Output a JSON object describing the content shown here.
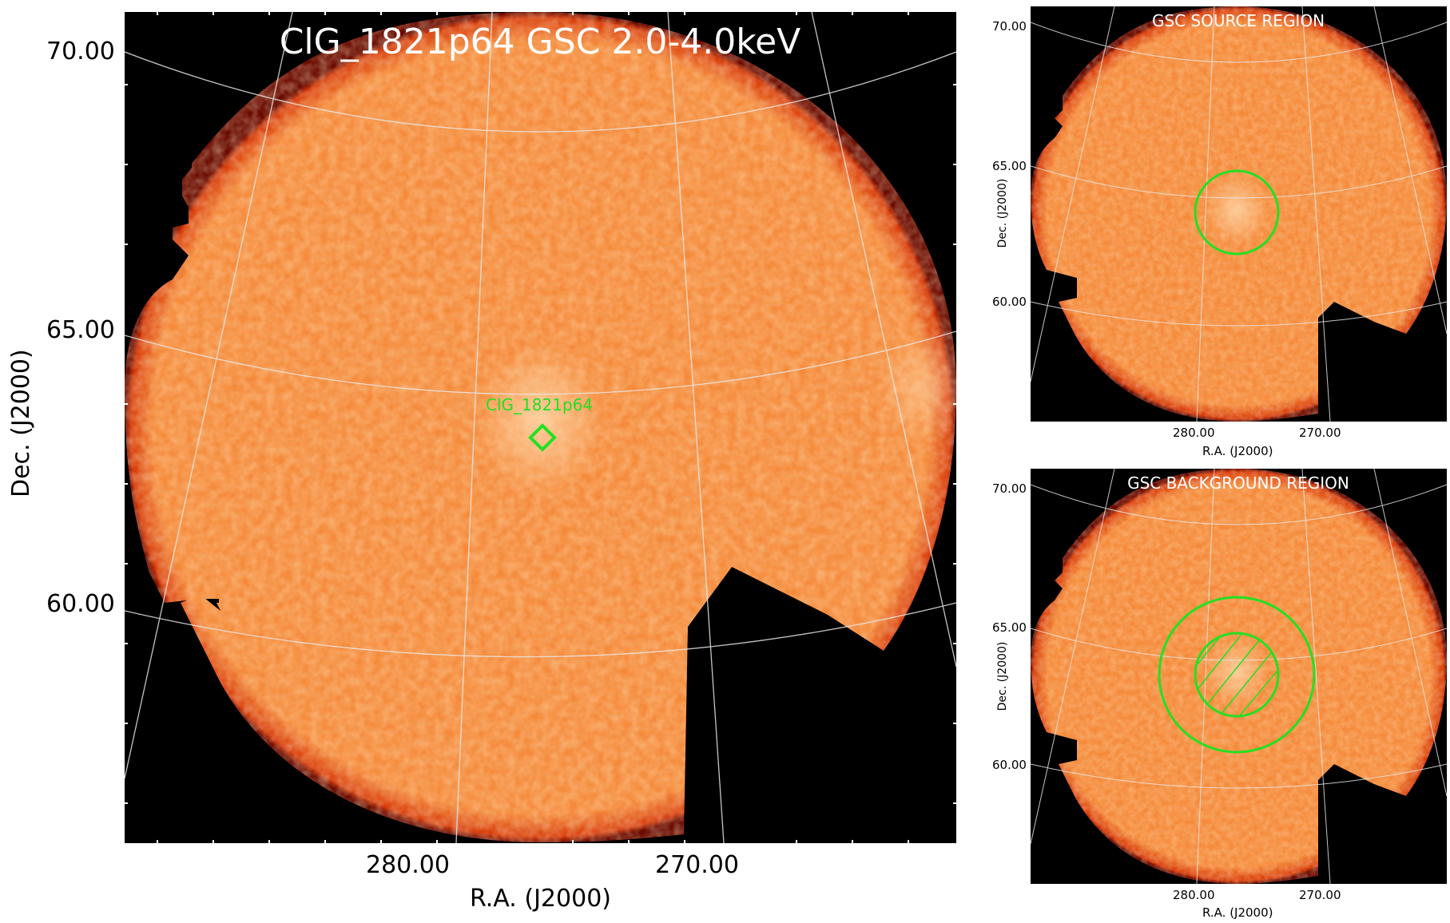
{
  "main_panel": {
    "title": "ClG_1821p64 GSC 2.0-4.0keV",
    "source_label": "ClG_1821p64",
    "y_ticks": [
      "70.00",
      "65.00",
      "60.00"
    ],
    "x_ticks": [
      "280.00",
      "270.00"
    ],
    "xlabel": "R.A. (J2000)",
    "ylabel": "Dec. (J2000)"
  },
  "source_panel": {
    "title": "GSC SOURCE REGION",
    "y_ticks": [
      "70.00",
      "65.00",
      "60.00"
    ],
    "x_ticks": [
      "280.00",
      "270.00"
    ],
    "xlabel": "R.A. (J2000)",
    "ylabel": "Dec. (J2000)"
  },
  "background_panel": {
    "title": "GSC BACKGROUND REGION",
    "y_ticks": [
      "70.00",
      "65.00",
      "60.00"
    ],
    "x_ticks": [
      "280.00",
      "270.00"
    ],
    "xlabel": "R.A. (J2000)",
    "ylabel": "Dec. (J2000)"
  },
  "colors": {
    "image_fill": "#f58a3a",
    "image_edge": "#c21a00",
    "region": "#22e022",
    "grid": "#e8e8e8",
    "background": "#000000"
  }
}
